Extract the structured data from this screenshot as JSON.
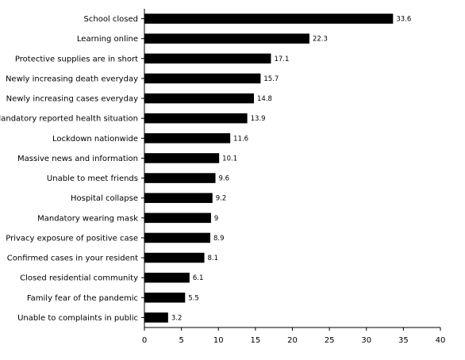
{
  "chart_data": {
    "type": "bar",
    "orientation": "horizontal",
    "categories": [
      "School closed",
      "Learning online",
      "Protective supplies are in short",
      "Newly increasing death everyday",
      "Newly increasing cases everyday",
      "Mandatory reported health situation",
      "Lockdown nationwide",
      "Massive news and information",
      "Unable to meet friends",
      "Hospital collapse",
      "Mandatory wearing mask",
      "Privacy exposure of positive case",
      "Confirmed cases in your resident",
      "Closed residential community",
      "Family fear of the pandemic",
      "Unable to complaints in public"
    ],
    "values": [
      33.6,
      22.3,
      17.1,
      15.7,
      14.8,
      13.9,
      11.6,
      10.1,
      9.6,
      9.2,
      9,
      8.9,
      8.1,
      6.1,
      5.5,
      3.2
    ],
    "data_labels": [
      "33.6",
      "22.3",
      "17.1",
      "15.7",
      "14.8",
      "13.9",
      "11.6",
      "10.1",
      "9.6",
      "9.2",
      "9",
      "8.9",
      "8.1",
      "6.1",
      "5.5",
      "3.2"
    ],
    "xlim": [
      0,
      40
    ],
    "xticks": [
      0,
      5,
      10,
      15,
      20,
      25,
      30,
      35,
      40
    ],
    "title": "",
    "xlabel": "",
    "ylabel": "",
    "grid": false,
    "bar_color": "#000000",
    "axis_color": "#000000"
  }
}
